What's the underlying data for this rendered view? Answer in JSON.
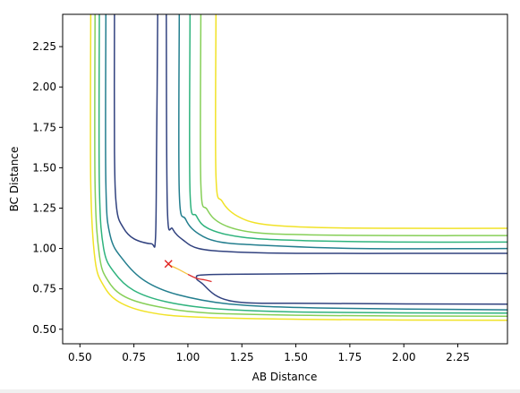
{
  "chart_data": {
    "type": "contour",
    "title": "",
    "xlabel": "AB Distance",
    "ylabel": "BC Distance",
    "xlim": [
      0.42,
      2.48
    ],
    "ylim": [
      0.41,
      2.45
    ],
    "x_ticks": [
      "0.50",
      "0.75",
      "1.00",
      "1.25",
      "1.50",
      "1.75",
      "2.00",
      "2.25"
    ],
    "y_ticks": [
      "0.50",
      "0.75",
      "1.00",
      "1.25",
      "1.50",
      "1.75",
      "2.00",
      "2.25"
    ],
    "grid": false,
    "legend": "none",
    "contour_levels": [
      {
        "color": "#31427f",
        "path": [
          [
            0.66,
            2.45
          ],
          [
            0.66,
            1.6
          ],
          [
            0.67,
            1.25
          ],
          [
            0.7,
            1.13
          ],
          [
            0.75,
            1.06
          ],
          [
            0.83,
            1.03
          ],
          [
            0.85,
            1.06
          ],
          [
            0.855,
            1.6
          ],
          [
            0.86,
            2.45
          ]
        ]
      },
      {
        "color": "#31427f",
        "path": [
          [
            0.9,
            2.45
          ],
          [
            0.905,
            1.25
          ],
          [
            0.93,
            1.12
          ],
          [
            0.98,
            1.05
          ],
          [
            1.05,
            1.0
          ],
          [
            1.2,
            0.98
          ],
          [
            1.5,
            0.97
          ],
          [
            2.0,
            0.97
          ],
          [
            2.48,
            0.97
          ]
        ]
      },
      {
        "color": "#31427f",
        "path": [
          [
            2.48,
            0.845
          ],
          [
            1.75,
            0.845
          ],
          [
            1.2,
            0.84
          ],
          [
            1.06,
            0.835
          ],
          [
            1.04,
            0.82
          ],
          [
            1.06,
            0.79
          ],
          [
            1.2,
            0.675
          ],
          [
            1.6,
            0.66
          ],
          [
            2.48,
            0.655
          ]
        ]
      },
      {
        "color": "#237e8e",
        "path": [
          [
            0.62,
            2.45
          ],
          [
            0.62,
            1.4
          ],
          [
            0.64,
            1.08
          ],
          [
            0.7,
            0.93
          ],
          [
            0.8,
            0.8
          ],
          [
            0.95,
            0.715
          ],
          [
            1.2,
            0.655
          ],
          [
            1.6,
            0.632
          ],
          [
            2.48,
            0.62
          ]
        ]
      },
      {
        "color": "#237e8e",
        "path": [
          [
            0.96,
            2.45
          ],
          [
            0.96,
            1.35
          ],
          [
            0.99,
            1.18
          ],
          [
            1.05,
            1.09
          ],
          [
            1.15,
            1.04
          ],
          [
            1.35,
            1.02
          ],
          [
            1.8,
            1.0
          ],
          [
            2.48,
            1.0
          ]
        ]
      },
      {
        "color": "#2fb37d",
        "path": [
          [
            0.59,
            2.45
          ],
          [
            0.59,
            1.4
          ],
          [
            0.61,
            1.0
          ],
          [
            0.66,
            0.85
          ],
          [
            0.75,
            0.74
          ],
          [
            0.9,
            0.67
          ],
          [
            1.15,
            0.625
          ],
          [
            1.6,
            0.605
          ],
          [
            2.48,
            0.6
          ]
        ]
      },
      {
        "color": "#2fb37d",
        "path": [
          [
            1.01,
            2.45
          ],
          [
            1.01,
            1.35
          ],
          [
            1.04,
            1.2
          ],
          [
            1.1,
            1.12
          ],
          [
            1.25,
            1.07
          ],
          [
            1.5,
            1.05
          ],
          [
            2.0,
            1.04
          ],
          [
            2.48,
            1.04
          ]
        ]
      },
      {
        "color": "#86cf57",
        "path": [
          [
            0.57,
            2.45
          ],
          [
            0.57,
            1.4
          ],
          [
            0.59,
            0.96
          ],
          [
            0.63,
            0.8
          ],
          [
            0.71,
            0.7
          ],
          [
            0.86,
            0.64
          ],
          [
            1.1,
            0.6
          ],
          [
            1.6,
            0.585
          ],
          [
            2.48,
            0.58
          ]
        ]
      },
      {
        "color": "#86cf57",
        "path": [
          [
            1.06,
            2.45
          ],
          [
            1.06,
            1.4
          ],
          [
            1.09,
            1.24
          ],
          [
            1.16,
            1.15
          ],
          [
            1.3,
            1.1
          ],
          [
            1.55,
            1.085
          ],
          [
            2.0,
            1.08
          ],
          [
            2.48,
            1.08
          ]
        ]
      },
      {
        "color": "#f1e227",
        "path": [
          [
            0.55,
            2.45
          ],
          [
            0.55,
            1.4
          ],
          [
            0.57,
            0.93
          ],
          [
            0.61,
            0.77
          ],
          [
            0.68,
            0.67
          ],
          [
            0.82,
            0.605
          ],
          [
            1.05,
            0.575
          ],
          [
            1.6,
            0.56
          ],
          [
            2.48,
            0.555
          ]
        ]
      },
      {
        "color": "#f1e227",
        "path": [
          [
            1.13,
            2.45
          ],
          [
            1.13,
            1.45
          ],
          [
            1.16,
            1.29
          ],
          [
            1.23,
            1.2
          ],
          [
            1.35,
            1.15
          ],
          [
            1.6,
            1.13
          ],
          [
            2.0,
            1.125
          ],
          [
            2.48,
            1.125
          ]
        ]
      }
    ],
    "trajectory": {
      "color": "#e03030",
      "path": [
        [
          0.91,
          0.9
        ],
        [
          0.95,
          0.875
        ],
        [
          1.0,
          0.84
        ],
        [
          1.04,
          0.815
        ],
        [
          1.08,
          0.805
        ],
        [
          1.11,
          0.795
        ]
      ]
    },
    "trajectory_start_color": "#f5c542",
    "start_marker": {
      "x": 0.91,
      "y": 0.905,
      "color": "#e02020",
      "symbol": "x"
    }
  }
}
